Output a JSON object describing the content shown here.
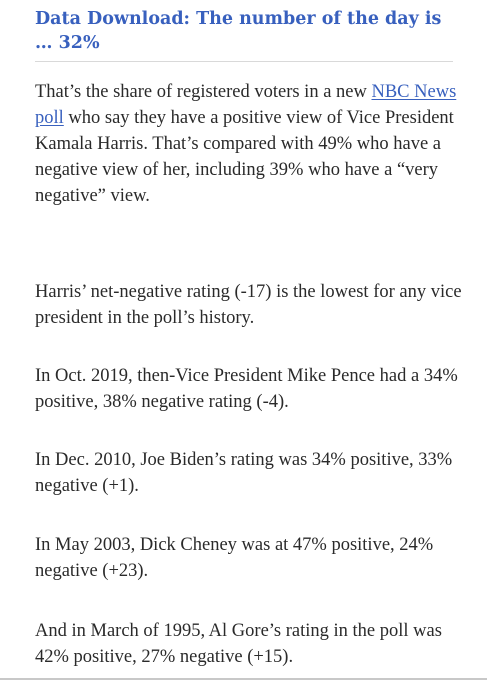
{
  "article": {
    "headline": "Data Download: The number of the day is … 32%",
    "paragraphs": [
      {
        "before": "That’s the share of registered voters in a new ",
        "link": "NBC News poll",
        "after": " who say they have a positive view of Vice President Kamala Harris. That’s compared with 49% who have a negative view of her, including 39% who have a “very negative” view."
      },
      {
        "text": "Harris’ net-negative rating (-17) is the lowest for any vice president in the poll’s history."
      },
      {
        "text": "In Oct. 2019, then-Vice President Mike Pence had a 34% positive, 38% negative rating (-4)."
      },
      {
        "text": "In Dec. 2010, Joe Biden’s rating was 34% positive, 33% negative (+1)."
      },
      {
        "text": "In May 2003, Dick Cheney was at 47% positive, 24% negative (+23)."
      },
      {
        "text": "And in March of 1995, Al Gore’s rating in the poll was 42% positive, 27% negative (+15)."
      }
    ]
  },
  "colors": {
    "headline": "#3860be",
    "link": "#3860be",
    "body_text": "#2a2a2a",
    "divider": "#d9d9d9"
  }
}
